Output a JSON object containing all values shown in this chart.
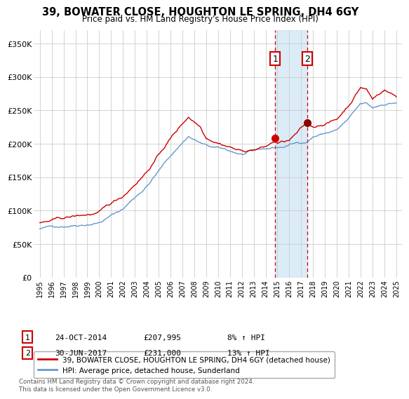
{
  "title": "39, BOWATER CLOSE, HOUGHTON LE SPRING, DH4 6GY",
  "subtitle": "Price paid vs. HM Land Registry's House Price Index (HPI)",
  "legend_line1": "39, BOWATER CLOSE, HOUGHTON LE SPRING, DH4 6GY (detached house)",
  "legend_line2": "HPI: Average price, detached house, Sunderland",
  "annotation1_label": "1",
  "annotation1_date": "24-OCT-2014",
  "annotation1_price": "£207,995",
  "annotation1_hpi": "8% ↑ HPI",
  "annotation2_label": "2",
  "annotation2_date": "30-JUN-2017",
  "annotation2_price": "£231,000",
  "annotation2_hpi": "13% ↑ HPI",
  "footer": "Contains HM Land Registry data © Crown copyright and database right 2024.\nThis data is licensed under the Open Government Licence v3.0.",
  "house_color": "#cc0000",
  "hpi_color": "#6699cc",
  "sale1_x": 2014.82,
  "sale1_y": 207995,
  "sale2_x": 2017.5,
  "sale2_y": 231000,
  "vline1_x": 2014.82,
  "vline2_x": 2017.5,
  "shade_xmin": 2014.82,
  "shade_xmax": 2017.5,
  "ylim": [
    0,
    370000
  ],
  "xlim": [
    1994.5,
    2025.5
  ],
  "yticks": [
    0,
    50000,
    100000,
    150000,
    200000,
    250000,
    300000,
    350000
  ],
  "ytick_labels": [
    "£0",
    "£50K",
    "£100K",
    "£150K",
    "£200K",
    "£250K",
    "£300K",
    "£350K"
  ],
  "xticks": [
    1995,
    1996,
    1997,
    1998,
    1999,
    2000,
    2001,
    2002,
    2003,
    2004,
    2005,
    2006,
    2007,
    2008,
    2009,
    2010,
    2011,
    2012,
    2013,
    2014,
    2015,
    2016,
    2017,
    2018,
    2019,
    2020,
    2021,
    2022,
    2023,
    2024,
    2025
  ]
}
